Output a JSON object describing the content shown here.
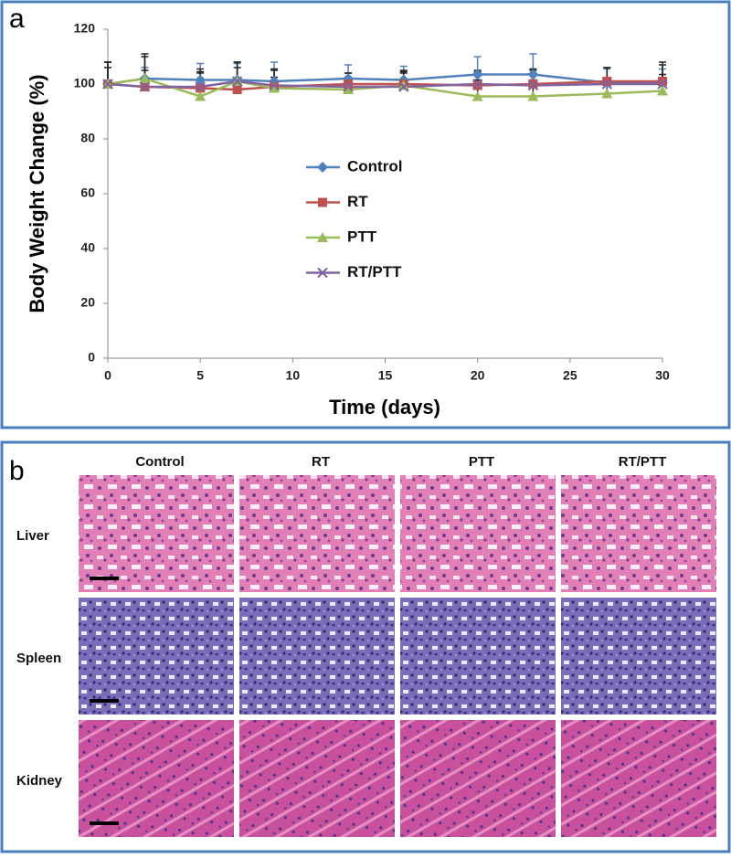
{
  "chart_data": {
    "type": "line",
    "panel_label": "a",
    "xlabel": "Time (days)",
    "ylabel": "Body Weight Change (%)",
    "x": [
      0,
      2,
      5,
      7,
      9,
      13,
      16,
      20,
      23,
      27,
      30
    ],
    "xlim": [
      0,
      30
    ],
    "xticks": [
      0,
      5,
      10,
      15,
      20,
      25,
      30
    ],
    "ylim": [
      0,
      120
    ],
    "yticks": [
      0,
      20,
      40,
      60,
      80,
      100,
      120
    ],
    "series": [
      {
        "name": "Control",
        "color": "#4f81bd",
        "marker": "diamond",
        "values": [
          100,
          102,
          101.5,
          101.5,
          101,
          102,
          101.5,
          103.5,
          103.5,
          100.5,
          100.5
        ],
        "errors": [
          8,
          4,
          6,
          6,
          7,
          5,
          5,
          6.5,
          7.5,
          5,
          5
        ]
      },
      {
        "name": "RT",
        "color": "#c0504d",
        "marker": "square",
        "values": [
          100,
          99,
          98.5,
          98,
          99,
          100,
          100,
          99.5,
          100,
          101,
          101
        ],
        "errors": [
          8,
          6,
          7,
          8,
          6,
          4,
          4,
          5,
          5,
          5,
          6
        ]
      },
      {
        "name": "PTT",
        "color": "#9bbb59",
        "marker": "triangle",
        "values": [
          100,
          102,
          95.5,
          101,
          98.5,
          98,
          99.5,
          95.5,
          95.5,
          96.5,
          97.5
        ],
        "errors": [
          6,
          8,
          9,
          7,
          4,
          4,
          5,
          6,
          6,
          5,
          6
        ]
      },
      {
        "name": "RT/PTT",
        "color": "#8064a2",
        "marker": "x",
        "values": [
          100,
          99,
          99,
          101,
          99.5,
          99,
          99,
          100,
          99.5,
          100,
          100
        ],
        "errors": [
          8,
          12,
          5,
          7,
          6,
          5,
          6,
          5,
          6,
          6,
          8
        ]
      }
    ]
  },
  "histology": {
    "panel_label": "b",
    "columns": [
      "Control",
      "RT",
      "PTT",
      "RT/PTT"
    ],
    "rows": [
      "Liver",
      "Spleen",
      "Kidney"
    ]
  }
}
